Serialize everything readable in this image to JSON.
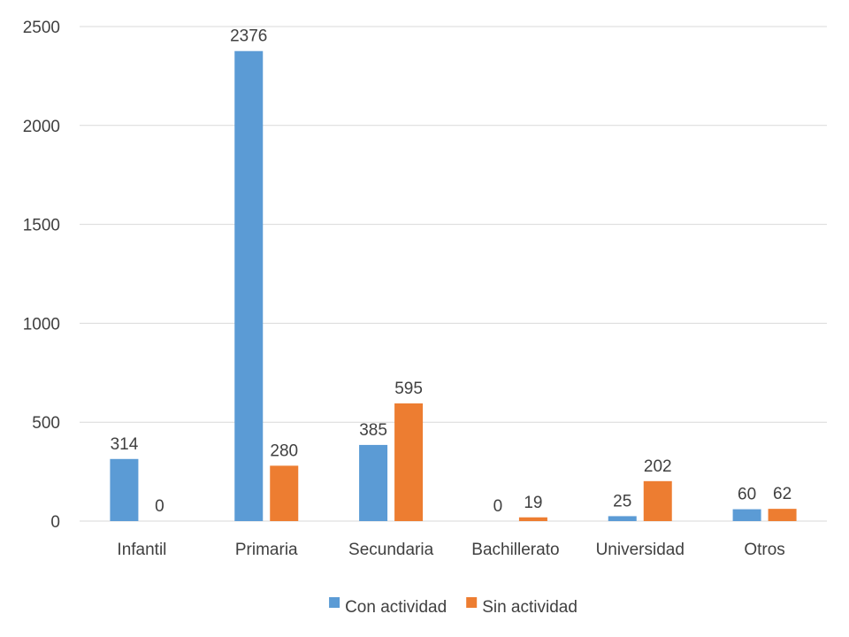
{
  "chart_data": {
    "type": "bar",
    "categories": [
      "Infantil",
      "Primaria",
      "Secundaria",
      "Bachillerato",
      "Universidad",
      "Otros"
    ],
    "series": [
      {
        "name": "Con actividad",
        "values": [
          314,
          2376,
          385,
          0,
          25,
          60
        ],
        "color": "#5b9bd5"
      },
      {
        "name": "Sin actividad",
        "values": [
          0,
          280,
          595,
          19,
          202,
          62
        ],
        "color": "#ed7d31"
      }
    ],
    "yticks": [
      0,
      500,
      1000,
      1500,
      2000,
      2500
    ],
    "ylim": [
      0,
      2500
    ],
    "grid": true,
    "legend_position": "bottom",
    "data_labels": true
  }
}
